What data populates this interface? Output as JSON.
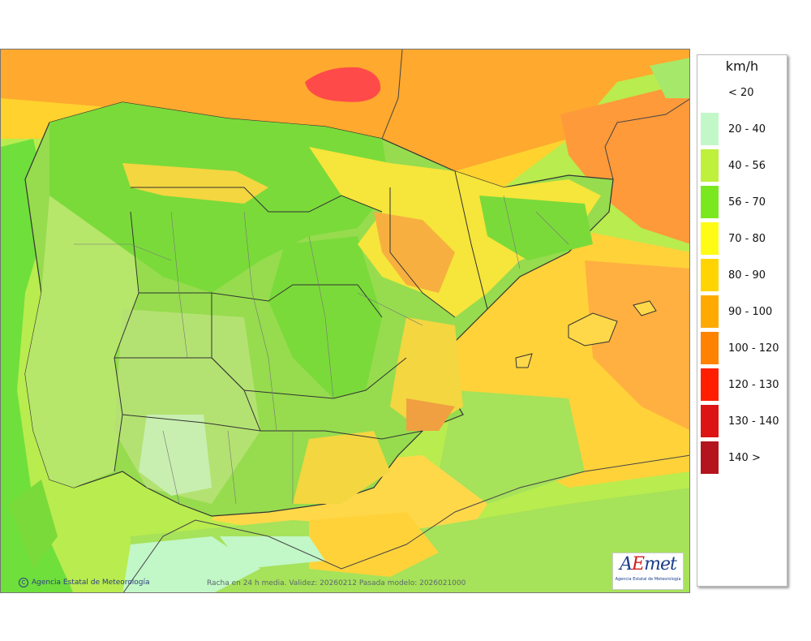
{
  "legend": {
    "title": "km/h",
    "items": [
      {
        "label": "< 20",
        "color": "#ffffff"
      },
      {
        "label": "20 - 40",
        "color": "#c2f7c8"
      },
      {
        "label": "40 - 56",
        "color": "#bef03c"
      },
      {
        "label": "56 - 70",
        "color": "#7ae81e"
      },
      {
        "label": "70 - 80",
        "color": "#fffb14"
      },
      {
        "label": "80 - 90",
        "color": "#ffd400"
      },
      {
        "label": "90 - 100",
        "color": "#ffaa00"
      },
      {
        "label": "100 - 120",
        "color": "#ff8200"
      },
      {
        "label": "120 - 130",
        "color": "#ff1e00"
      },
      {
        "label": "130 - 140",
        "color": "#dc1414"
      },
      {
        "label": "140 >",
        "color": "#b4141e"
      }
    ]
  },
  "footer": {
    "credit_symbol": "C",
    "credit": "Agencia Estatal de Meteorología",
    "validity": "Racha en 24 h media. Validez: 20260212 Pasada modelo: 2026021000"
  },
  "logo": {
    "lead": "A",
    "accent": "E",
    "tail": "met",
    "subtitle": "Agencia Estatal de Meteorología"
  }
}
